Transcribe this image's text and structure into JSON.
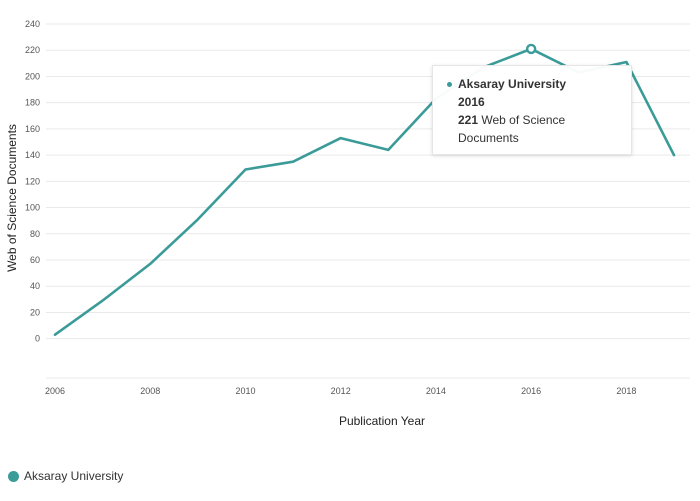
{
  "colors": {
    "series": "#3b9b98",
    "grid": "#e9e9e9",
    "text": "#333333"
  },
  "chart_data": {
    "type": "line",
    "title": "",
    "xlabel": "Publication Year",
    "ylabel": "Web of Science Documents",
    "xlim": [
      2006,
      2019
    ],
    "ylim": [
      -30,
      240
    ],
    "x_ticks": [
      "2006",
      "2008",
      "2010",
      "2012",
      "2014",
      "2016",
      "2018"
    ],
    "y_ticks": [
      "0",
      "20",
      "40",
      "60",
      "80",
      "100",
      "120",
      "140",
      "160",
      "180",
      "200",
      "220",
      "240"
    ],
    "grid": true,
    "legend_position": "bottom-left",
    "series": [
      {
        "name": "Aksaray University",
        "x": [
          2006,
          2007,
          2008,
          2009,
          2010,
          2011,
          2012,
          2013,
          2014,
          2015,
          2016,
          2017,
          2018,
          2019
        ],
        "y": [
          3,
          29,
          57,
          91,
          129,
          135,
          153,
          144,
          183,
          207,
          221,
          203,
          211,
          140
        ]
      }
    ],
    "highlighted_point": {
      "series_index": 0,
      "x": 2016,
      "y": 221
    }
  },
  "tooltip": {
    "series": "Aksaray University",
    "year": "2016",
    "value": "221",
    "unit_line1": "Web of Science",
    "unit_line2": "Documents"
  },
  "legend": {
    "label": "Aksaray University"
  }
}
